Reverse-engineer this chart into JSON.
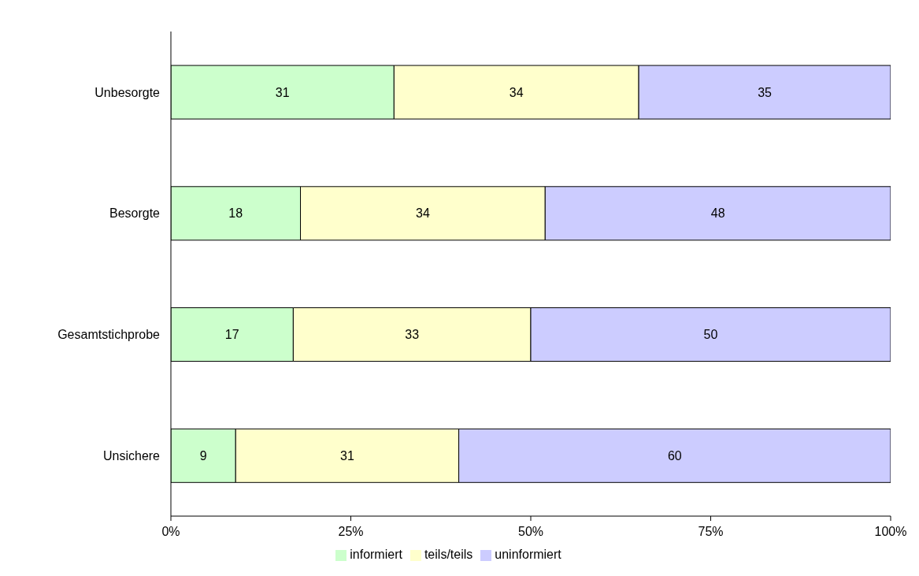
{
  "chart_data": {
    "type": "bar",
    "orientation": "horizontal",
    "stacked": true,
    "categories": [
      "Unbesorgte",
      "Besorgte",
      "Gesamtstichprobe",
      "Unsichere"
    ],
    "series": [
      {
        "name": "informiert",
        "color": "#ccffcc",
        "values": [
          31,
          18,
          17,
          9
        ]
      },
      {
        "name": "teils/teils",
        "color": "#ffffcc",
        "values": [
          34,
          34,
          33,
          31
        ]
      },
      {
        "name": "uninformiert",
        "color": "#ccccff",
        "values": [
          35,
          48,
          50,
          60
        ]
      }
    ],
    "xlim": [
      0,
      100
    ],
    "xticks": [
      {
        "value": 0,
        "label": "0%"
      },
      {
        "value": 25,
        "label": "25%"
      },
      {
        "value": 50,
        "label": "50%"
      },
      {
        "value": 75,
        "label": "75%"
      },
      {
        "value": 100,
        "label": "100%"
      }
    ],
    "data_labels": true,
    "grid": false,
    "legend": "bottom"
  }
}
